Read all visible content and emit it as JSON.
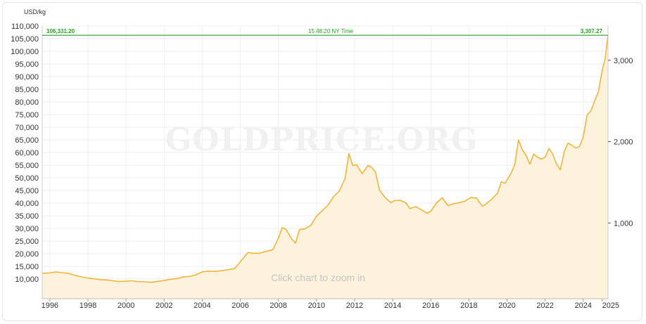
{
  "chart_data": {
    "type": "area",
    "left_axis_unit": "USD/kg",
    "right_axis_unit": "",
    "y_left_ticks": [
      "10,000",
      "15,000",
      "20,000",
      "25,000",
      "30,000",
      "35,000",
      "40,000",
      "45,000",
      "50,000",
      "55,000",
      "60,000",
      "65,000",
      "70,000",
      "75,000",
      "80,000",
      "85,000",
      "90,000",
      "95,000",
      "100,000",
      "105,000",
      "110,000"
    ],
    "y_left_values": [
      10000,
      15000,
      20000,
      25000,
      30000,
      35000,
      40000,
      45000,
      50000,
      55000,
      60000,
      65000,
      70000,
      75000,
      80000,
      85000,
      90000,
      95000,
      100000,
      105000,
      110000
    ],
    "y_left_range": [
      5000,
      110000
    ],
    "y_right_ticks": [
      "1,000",
      "2,000",
      "3,000"
    ],
    "y_right_values": [
      1000,
      2000,
      3000
    ],
    "x_ticks": [
      "1996",
      "1998",
      "2000",
      "2002",
      "2004",
      "2006",
      "2008",
      "2010",
      "2012",
      "2014",
      "2016",
      "2018",
      "2020",
      "2022",
      "2024",
      "2025"
    ],
    "x_tick_values": [
      1996,
      1998,
      2000,
      2002,
      2004,
      2006,
      2008,
      2010,
      2012,
      2014,
      2016,
      2018,
      2020,
      2022,
      2024,
      2025
    ],
    "x_range": [
      1995.6,
      2025.3
    ],
    "grid": true,
    "series": [
      {
        "color": "#f0b43a",
        "fill": "#fdf3dc",
        "points": [
          [
            1995.6,
            12300
          ],
          [
            1996.0,
            12400
          ],
          [
            1996.3,
            12800
          ],
          [
            1996.7,
            12500
          ],
          [
            1997.0,
            12200
          ],
          [
            1997.3,
            11500
          ],
          [
            1997.7,
            10800
          ],
          [
            1998.0,
            10400
          ],
          [
            1998.3,
            10100
          ],
          [
            1998.7,
            9700
          ],
          [
            1999.0,
            9600
          ],
          [
            1999.3,
            9300
          ],
          [
            1999.6,
            9000
          ],
          [
            2000.0,
            9100
          ],
          [
            2000.3,
            9300
          ],
          [
            2000.6,
            9000
          ],
          [
            2001.0,
            8900
          ],
          [
            2001.3,
            8700
          ],
          [
            2001.6,
            9000
          ],
          [
            2002.0,
            9400
          ],
          [
            2002.3,
            9900
          ],
          [
            2002.7,
            10200
          ],
          [
            2003.0,
            10800
          ],
          [
            2003.3,
            11000
          ],
          [
            2003.6,
            11500
          ],
          [
            2004.0,
            12800
          ],
          [
            2004.3,
            13100
          ],
          [
            2004.7,
            13000
          ],
          [
            2005.0,
            13300
          ],
          [
            2005.3,
            13600
          ],
          [
            2005.7,
            14100
          ],
          [
            2006.0,
            16800
          ],
          [
            2006.4,
            20500
          ],
          [
            2006.6,
            20200
          ],
          [
            2007.0,
            20200
          ],
          [
            2007.3,
            20800
          ],
          [
            2007.7,
            21600
          ],
          [
            2008.0,
            26200
          ],
          [
            2008.2,
            30400
          ],
          [
            2008.4,
            29600
          ],
          [
            2008.7,
            25800
          ],
          [
            2008.9,
            24200
          ],
          [
            2009.1,
            29500
          ],
          [
            2009.4,
            29900
          ],
          [
            2009.7,
            31200
          ],
          [
            2010.0,
            34900
          ],
          [
            2010.3,
            37000
          ],
          [
            2010.6,
            39200
          ],
          [
            2010.9,
            42600
          ],
          [
            2011.2,
            44800
          ],
          [
            2011.5,
            49800
          ],
          [
            2011.7,
            59600
          ],
          [
            2011.9,
            54800
          ],
          [
            2012.1,
            55200
          ],
          [
            2012.4,
            51600
          ],
          [
            2012.7,
            54900
          ],
          [
            2012.9,
            54100
          ],
          [
            2013.1,
            52200
          ],
          [
            2013.3,
            45200
          ],
          [
            2013.6,
            42200
          ],
          [
            2013.9,
            40200
          ],
          [
            2014.1,
            41000
          ],
          [
            2014.4,
            41100
          ],
          [
            2014.7,
            40000
          ],
          [
            2014.9,
            37800
          ],
          [
            2015.2,
            38600
          ],
          [
            2015.5,
            37400
          ],
          [
            2015.8,
            36000
          ],
          [
            2016.0,
            36800
          ],
          [
            2016.3,
            40100
          ],
          [
            2016.6,
            42100
          ],
          [
            2016.9,
            39000
          ],
          [
            2017.2,
            39800
          ],
          [
            2017.5,
            40200
          ],
          [
            2017.8,
            40800
          ],
          [
            2018.1,
            42200
          ],
          [
            2018.4,
            42000
          ],
          [
            2018.7,
            38800
          ],
          [
            2018.9,
            39600
          ],
          [
            2019.2,
            41600
          ],
          [
            2019.5,
            43900
          ],
          [
            2019.7,
            48400
          ],
          [
            2019.9,
            47900
          ],
          [
            2020.2,
            51700
          ],
          [
            2020.4,
            55100
          ],
          [
            2020.6,
            65000
          ],
          [
            2020.8,
            61100
          ],
          [
            2021.0,
            58900
          ],
          [
            2021.2,
            55400
          ],
          [
            2021.4,
            59300
          ],
          [
            2021.6,
            58200
          ],
          [
            2021.8,
            57400
          ],
          [
            2022.0,
            58100
          ],
          [
            2022.2,
            61600
          ],
          [
            2022.4,
            59300
          ],
          [
            2022.6,
            55400
          ],
          [
            2022.8,
            53100
          ],
          [
            2023.0,
            60300
          ],
          [
            2023.2,
            63700
          ],
          [
            2023.4,
            62900
          ],
          [
            2023.6,
            61800
          ],
          [
            2023.8,
            62300
          ],
          [
            2024.0,
            66100
          ],
          [
            2024.2,
            74800
          ],
          [
            2024.4,
            76400
          ],
          [
            2024.6,
            80400
          ],
          [
            2024.8,
            84200
          ],
          [
            2025.0,
            92600
          ],
          [
            2025.15,
            97000
          ],
          [
            2025.3,
            106300
          ]
        ]
      }
    ],
    "highlight": {
      "left_label": "106,331.20",
      "center_label": "15:48:20 NY Time",
      "right_label": "3,307.27",
      "value": 106331.2,
      "color": "#2aa02a"
    },
    "watermark": "GOLDPRICE.ORG",
    "overlay_text": "Click chart to zoom in"
  }
}
